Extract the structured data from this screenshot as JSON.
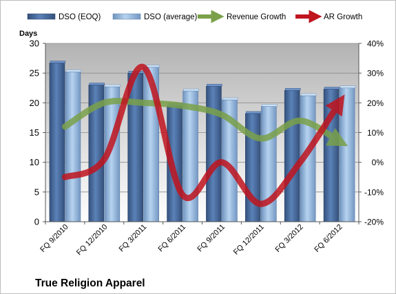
{
  "chart_data": {
    "type": "bar",
    "title": "True Religion Apparel",
    "ylabel": "Days",
    "categories": [
      "FQ 9/2010",
      "FQ 12/2010",
      "FQ 3/2011",
      "FQ 6/2011",
      "FQ 9/2011",
      "FQ 12/2011",
      "FQ 3/2012",
      "FQ 6/2012"
    ],
    "y_left": {
      "min": 0,
      "max": 30,
      "ticks": [
        "0",
        "5",
        "10",
        "15",
        "20",
        "25",
        "30"
      ]
    },
    "y_right": {
      "min": -20,
      "max": 40,
      "ticks": [
        "-20%",
        "-10%",
        "0%",
        "10%",
        "20%",
        "30%",
        "40%"
      ]
    },
    "series": [
      {
        "name": "DSO (EOQ)",
        "kind": "bar",
        "axis": "left",
        "color": "#4a6fa5",
        "values": [
          26.7,
          23.0,
          25.0,
          19.5,
          22.8,
          18.2,
          22.1,
          22.3
        ]
      },
      {
        "name": "DSO (average)",
        "kind": "bar",
        "axis": "left",
        "color": "#9fc3e7",
        "values": [
          25.2,
          22.7,
          26.0,
          22.0,
          20.5,
          19.4,
          21.2,
          22.5
        ]
      },
      {
        "name": "Revenue Growth",
        "kind": "line",
        "axis": "right",
        "unit": "%",
        "color": "#7aa14a",
        "values": [
          12,
          20,
          20,
          19,
          16,
          8,
          14,
          7
        ]
      },
      {
        "name": "AR Growth",
        "kind": "line",
        "axis": "right",
        "unit": "%",
        "color": "#c0141e",
        "values": [
          -5,
          1,
          32,
          -11,
          0,
          -14,
          0,
          20
        ]
      }
    ],
    "legend_position": "top",
    "plot_background": "gradient gray to white"
  }
}
